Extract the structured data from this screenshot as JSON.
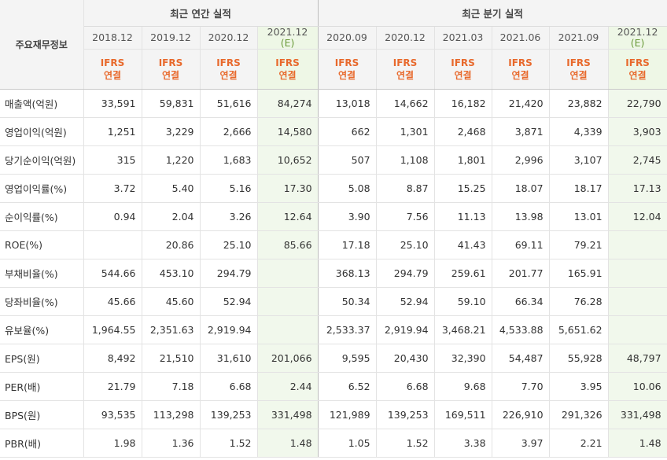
{
  "header": {
    "corner_label": "주요재무정보",
    "annual_group": "최근 연간 실적",
    "quarterly_group": "최근 분기 실적"
  },
  "periods": [
    {
      "label": "2018.12",
      "est": false,
      "std": "IFRS",
      "basis": "연결"
    },
    {
      "label": "2019.12",
      "est": false,
      "std": "IFRS",
      "basis": "연결"
    },
    {
      "label": "2020.12",
      "est": false,
      "std": "IFRS",
      "basis": "연결"
    },
    {
      "label": "2021.12",
      "sub": "(E)",
      "est": true,
      "std": "IFRS",
      "basis": "연결"
    },
    {
      "label": "2020.09",
      "est": false,
      "std": "IFRS",
      "basis": "연결"
    },
    {
      "label": "2020.12",
      "est": false,
      "std": "IFRS",
      "basis": "연결"
    },
    {
      "label": "2021.03",
      "est": false,
      "std": "IFRS",
      "basis": "연결"
    },
    {
      "label": "2021.06",
      "est": false,
      "std": "IFRS",
      "basis": "연결"
    },
    {
      "label": "2021.09",
      "est": false,
      "std": "IFRS",
      "basis": "연결"
    },
    {
      "label": "2021.12",
      "sub": "(E)",
      "est": true,
      "std": "IFRS",
      "basis": "연결"
    }
  ],
  "rows": [
    {
      "label": "매출액(억원)",
      "values": [
        "33,591",
        "59,831",
        "51,616",
        "84,274",
        "13,018",
        "14,662",
        "16,182",
        "21,420",
        "23,882",
        "22,790"
      ]
    },
    {
      "label": "영업이익(억원)",
      "values": [
        "1,251",
        "3,229",
        "2,666",
        "14,580",
        "662",
        "1,301",
        "2,468",
        "3,871",
        "4,339",
        "3,903"
      ]
    },
    {
      "label": "당기순이익(억원)",
      "values": [
        "315",
        "1,220",
        "1,683",
        "10,652",
        "507",
        "1,108",
        "1,801",
        "2,996",
        "3,107",
        "2,745"
      ]
    },
    {
      "label": "영업이익률(%)",
      "sep": true,
      "values": [
        "3.72",
        "5.40",
        "5.16",
        "17.30",
        "5.08",
        "8.87",
        "15.25",
        "18.07",
        "18.17",
        "17.13"
      ]
    },
    {
      "label": "순이익률(%)",
      "values": [
        "0.94",
        "2.04",
        "3.26",
        "12.64",
        "3.90",
        "7.56",
        "11.13",
        "13.98",
        "13.01",
        "12.04"
      ]
    },
    {
      "label": "ROE(%)",
      "values": [
        "",
        "20.86",
        "25.10",
        "85.66",
        "17.18",
        "25.10",
        "41.43",
        "69.11",
        "79.21",
        ""
      ]
    },
    {
      "label": "부채비율(%)",
      "sep": true,
      "values": [
        "544.66",
        "453.10",
        "294.79",
        "",
        "368.13",
        "294.79",
        "259.61",
        "201.77",
        "165.91",
        ""
      ]
    },
    {
      "label": "당좌비율(%)",
      "values": [
        "45.66",
        "45.60",
        "52.94",
        "",
        "50.34",
        "52.94",
        "59.10",
        "66.34",
        "76.28",
        ""
      ]
    },
    {
      "label": "유보율(%)",
      "values": [
        "1,964.55",
        "2,351.63",
        "2,919.94",
        "",
        "2,533.37",
        "2,919.94",
        "3,468.21",
        "4,533.88",
        "5,651.62",
        ""
      ]
    },
    {
      "label": "EPS(원)",
      "sep": true,
      "values": [
        "8,492",
        "21,510",
        "31,610",
        "201,066",
        "9,595",
        "20,430",
        "32,390",
        "54,487",
        "55,928",
        "48,797"
      ]
    },
    {
      "label": "PER(배)",
      "values": [
        "21.79",
        "7.18",
        "6.68",
        "2.44",
        "6.52",
        "6.68",
        "9.68",
        "7.70",
        "3.95",
        "10.06"
      ]
    },
    {
      "label": "BPS(원)",
      "values": [
        "93,535",
        "113,298",
        "139,253",
        "331,498",
        "121,989",
        "139,253",
        "169,511",
        "226,910",
        "291,326",
        "331,498"
      ]
    },
    {
      "label": "PBR(배)",
      "values": [
        "1.98",
        "1.36",
        "1.52",
        "1.48",
        "1.05",
        "1.52",
        "3.38",
        "3.97",
        "2.21",
        "1.48"
      ]
    }
  ]
}
